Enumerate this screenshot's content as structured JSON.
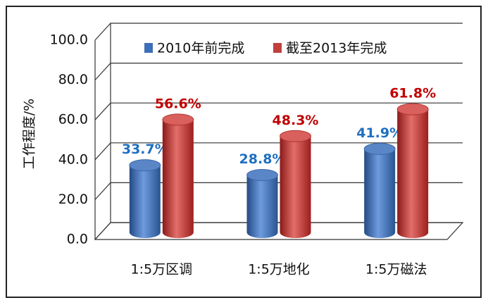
{
  "chart_data": {
    "type": "bar",
    "y_label": "工作程度/%",
    "categories": [
      "1:5万区调",
      "1:5万地化",
      "1:5万磁法"
    ],
    "series": [
      {
        "name": "2010年前完成",
        "color": "#3d6fb8",
        "values": [
          33.7,
          28.8,
          41.9
        ],
        "value_labels": [
          "33.7%",
          "28.8%",
          "41.9%"
        ],
        "label_color": "#1f6fc0"
      },
      {
        "name": "截至2013年完成",
        "color": "#c0403d",
        "values": [
          56.6,
          48.3,
          61.8
        ],
        "value_labels": [
          "56.6%",
          "48.3%",
          "61.8%"
        ],
        "label_color": "#c00000"
      }
    ],
    "ylim": [
      0,
      100
    ],
    "yticks": [
      {
        "value": 0,
        "label": "0.0"
      },
      {
        "value": 20,
        "label": "20.0"
      },
      {
        "value": 40,
        "label": "40.0"
      },
      {
        "value": 60,
        "label": "60.0"
      },
      {
        "value": 80,
        "label": "80.0"
      },
      {
        "value": 100,
        "label": "100.0"
      }
    ],
    "grid": true
  }
}
